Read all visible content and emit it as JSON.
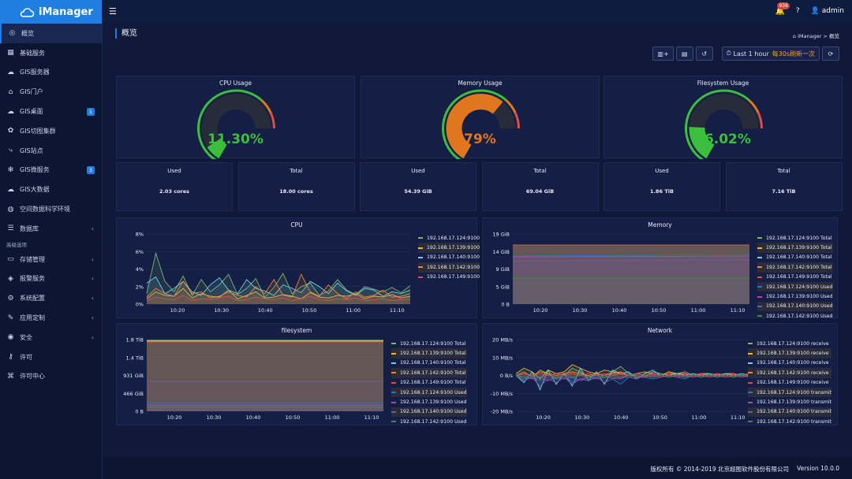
{
  "app": {
    "title": "iManager"
  },
  "sidebar": {
    "items": [
      {
        "label": "概览",
        "icon": "dashboard-icon",
        "active": true
      },
      {
        "label": "基础服务",
        "icon": "grid-icon"
      },
      {
        "label": "GIS服务器",
        "icon": "cloud-icon"
      },
      {
        "label": "GIS门户",
        "icon": "home-icon"
      },
      {
        "label": "GIS桌面",
        "icon": "cloud-icon",
        "badge": "1"
      },
      {
        "label": "GIS切图集群",
        "icon": "cluster-icon"
      },
      {
        "label": "GIS站点",
        "icon": "share-icon"
      },
      {
        "label": "GIS微服务",
        "icon": "asterisk-icon",
        "badge": "3"
      },
      {
        "label": "GIS大数据",
        "icon": "cloud-icon"
      },
      {
        "label": "空间数据科学环境",
        "icon": "globe-icon"
      },
      {
        "label": "数据库",
        "icon": "database-icon",
        "chevron": true
      }
    ],
    "group_label": "高级选项",
    "advanced": [
      {
        "label": "存储管理",
        "icon": "storage-icon",
        "chevron": true
      },
      {
        "label": "报警服务",
        "icon": "megaphone-icon",
        "chevron": true
      },
      {
        "label": "系统配置",
        "icon": "gear-icon",
        "chevron": true
      },
      {
        "label": "应用定制",
        "icon": "wrench-icon",
        "chevron": true
      },
      {
        "label": "安全",
        "icon": "shield-icon",
        "chevron": true
      },
      {
        "label": "许可",
        "icon": "key-icon"
      },
      {
        "label": "许可中心",
        "icon": "license-center-icon"
      }
    ]
  },
  "topbar": {
    "notifications": "938",
    "user": "admin"
  },
  "page": {
    "title": "概览",
    "breadcrumb_home": "iManager",
    "breadcrumb_current": "概览"
  },
  "toolbar": {
    "time_range": "Last 1 hour",
    "refresh": "每30s刷新一次"
  },
  "gauges": [
    {
      "title": "CPU Usage",
      "value": "11.30%",
      "percent": 11.3,
      "color": "#3cbf3c"
    },
    {
      "title": "Memory Usage",
      "value": "79%",
      "percent": 79,
      "color": "#e0761e"
    },
    {
      "title": "Filesystem Usage",
      "value": "26.02%",
      "percent": 26.02,
      "color": "#3cbf3c"
    }
  ],
  "stats": [
    {
      "label": "Used",
      "value": "2.03 cores"
    },
    {
      "label": "Total",
      "value": "18.00 cores"
    },
    {
      "label": "Used",
      "value": "54.39 GiB"
    },
    {
      "label": "Total",
      "value": "69.04 GiB"
    },
    {
      "label": "Used",
      "value": "1.86 TiB"
    },
    {
      "label": "Total",
      "value": "7.16 TiB"
    }
  ],
  "chart_data": [
    {
      "type": "line",
      "title": "CPU",
      "y_ticks": [
        "8%",
        "6%",
        "4%",
        "2%",
        "0%"
      ],
      "x_ticks": [
        "10:20",
        "10:30",
        "10:40",
        "10:50",
        "11:00",
        "11:10"
      ],
      "ylim": [
        0,
        8
      ],
      "series": [
        {
          "name": "192.168.17.124:9100",
          "color": "#7eb26d",
          "values": [
            1.2,
            5.8,
            2.6,
            1.4,
            3.2,
            1.0,
            2.8,
            1.4,
            2.2,
            3.4,
            1.1,
            1.8,
            2.9,
            0.8,
            1.9,
            3.5,
            1.2,
            2.0,
            2.4,
            1.0,
            1.5,
            2.8,
            1.6,
            1.1,
            2.0,
            1.7,
            1.4,
            1.9,
            1.3,
            2.1
          ]
        },
        {
          "name": "192.168.17.139:9100",
          "color": "#eab839",
          "values": [
            0.6,
            1.4,
            1.0,
            0.9,
            1.8,
            0.7,
            1.2,
            0.9,
            0.8,
            1.6,
            0.6,
            1.0,
            1.4,
            0.7,
            0.8,
            1.1,
            0.9,
            0.6,
            1.3,
            0.8,
            0.7,
            1.0,
            0.9,
            1.2,
            0.6,
            0.9,
            0.8,
            1.1,
            0.7,
            0.9
          ]
        },
        {
          "name": "192.168.17.140:9100",
          "color": "#6ed0e0",
          "values": [
            2.4,
            3.1,
            1.2,
            1.8,
            2.6,
            1.4,
            1.0,
            2.2,
            3.0,
            1.6,
            1.2,
            2.8,
            1.8,
            1.5,
            1.0,
            2.2,
            1.8,
            1.3,
            2.6,
            2.0,
            1.2,
            2.4,
            1.5,
            1.0,
            1.8,
            1.6,
            0.9,
            1.4,
            1.2,
            1.6
          ]
        },
        {
          "name": "192.168.17.142:9100",
          "color": "#ef843c",
          "values": [
            0.8,
            1.8,
            1.2,
            0.9,
            2.6,
            1.2,
            1.4,
            0.7,
            0.9,
            1.4,
            1.0,
            0.8,
            2.0,
            1.2,
            2.8,
            1.0,
            0.8,
            3.4,
            1.4,
            0.9,
            2.2,
            1.2,
            0.6,
            1.4,
            0.8,
            1.0,
            1.6,
            0.8,
            0.9,
            1.2
          ]
        },
        {
          "name": "192.168.17.149:9100",
          "color": "#e24d42",
          "values": [
            0.4,
            0.8,
            0.6,
            0.5,
            1.0,
            0.4,
            0.6,
            0.5,
            0.7,
            0.9,
            0.4,
            0.5,
            0.8,
            0.6,
            0.5,
            0.7,
            0.4,
            0.6,
            0.9,
            0.5,
            0.4,
            0.6,
            0.5,
            0.7,
            0.4,
            0.5,
            0.6,
            0.4,
            0.5,
            0.6
          ]
        }
      ]
    },
    {
      "type": "line",
      "title": "Memory",
      "y_ticks": [
        "19 GiB",
        "14 GiB",
        "9 GiB",
        "5 GiB",
        "0 B"
      ],
      "x_ticks": [
        "10:20",
        "10:30",
        "10:40",
        "10:50",
        "11:00",
        "11:10"
      ],
      "ylim": [
        0,
        19
      ],
      "series": [
        {
          "name": "192.168.17.124:9100 Total",
          "color": "#7eb26d",
          "values": [
            16,
            16
          ]
        },
        {
          "name": "192.168.17.139:9100 Total",
          "color": "#eab839",
          "values": [
            16,
            16
          ]
        },
        {
          "name": "192.168.17.140:9100 Total",
          "color": "#6ed0e0",
          "values": [
            16,
            16
          ]
        },
        {
          "name": "192.168.17.142:9100 Total",
          "color": "#ef843c",
          "values": [
            16,
            16
          ]
        },
        {
          "name": "192.168.17.149:9100 Total",
          "color": "#e24d42",
          "values": [
            16,
            16
          ]
        },
        {
          "name": "192.168.17.124:9100 Used",
          "color": "#1f78c1",
          "values": [
            13,
            13.4
          ]
        },
        {
          "name": "192.168.17.139:9100 Used",
          "color": "#ba43a9",
          "values": [
            12.8,
            13
          ]
        },
        {
          "name": "192.168.17.140:9100 Used",
          "color": "#705da0",
          "values": [
            11.6,
            12
          ]
        },
        {
          "name": "192.168.17.142:9100 Used",
          "color": "#508642",
          "values": [
            7,
            7
          ]
        }
      ]
    },
    {
      "type": "line",
      "title": "filesystem",
      "y_ticks": [
        "1.8 TiB",
        "1.4 TiB",
        "931 GiB",
        "466 GiB",
        "0 B"
      ],
      "x_ticks": [
        "10:20",
        "10:30",
        "10:40",
        "10:50",
        "11:00",
        "11:10"
      ],
      "ylim": [
        0,
        1.8
      ],
      "series": [
        {
          "name": "192.168.17.124:9100 Total",
          "color": "#7eb26d",
          "values": [
            1.78,
            1.78
          ]
        },
        {
          "name": "192.168.17.139:9100 Total",
          "color": "#eab839",
          "values": [
            1.77,
            1.77
          ]
        },
        {
          "name": "192.168.17.140:9100 Total",
          "color": "#6ed0e0",
          "values": [
            1.76,
            1.76
          ]
        },
        {
          "name": "192.168.17.142:9100 Total",
          "color": "#ef843c",
          "values": [
            1.75,
            1.75
          ]
        },
        {
          "name": "192.168.17.149:9100 Total",
          "color": "#e24d42",
          "values": [
            1.74,
            1.74
          ]
        },
        {
          "name": "192.168.17.124:9100 Used",
          "color": "#1f78c1",
          "values": [
            0.2,
            0.2
          ]
        },
        {
          "name": "192.168.17.139:9100 Used",
          "color": "#ba43a9",
          "values": [
            0.15,
            0.15
          ]
        },
        {
          "name": "192.168.17.140:9100 Used",
          "color": "#705da0",
          "values": [
            0.75,
            0.75
          ]
        },
        {
          "name": "192.168.17.142:9100 Used",
          "color": "#508642",
          "values": [
            0.1,
            0.1
          ]
        }
      ]
    },
    {
      "type": "line",
      "title": "Network",
      "y_ticks": [
        "20 MB/s",
        "10 MB/s",
        "0 B/s",
        "-10 MB/s",
        "-20 MB/s"
      ],
      "x_ticks": [
        "10:20",
        "10:30",
        "10:40",
        "10:50",
        "11:00",
        "11:10"
      ],
      "ylim": [
        -20,
        20
      ],
      "series": [
        {
          "name": "192.168.17.124:9100 receive",
          "color": "#7eb26d",
          "values": [
            0,
            2,
            -1,
            3,
            1,
            -2,
            0,
            4,
            2,
            -1,
            1,
            0,
            2,
            5,
            1,
            0,
            -1,
            2,
            1,
            0,
            1,
            2,
            0,
            1,
            0,
            1,
            0,
            1,
            0,
            1
          ]
        },
        {
          "name": "192.168.17.139:9100 receive",
          "color": "#eab839",
          "values": [
            1,
            4,
            2,
            -2,
            3,
            1,
            2,
            6,
            4,
            2,
            1,
            3,
            2,
            1,
            0,
            1,
            2,
            1,
            0,
            2,
            1,
            1,
            0,
            1,
            1,
            0,
            1,
            1,
            0,
            1
          ]
        },
        {
          "name": "192.168.17.140:9100 receive",
          "color": "#6ed0e0",
          "values": [
            0,
            -4,
            2,
            -8,
            3,
            -5,
            1,
            -6,
            4,
            -3,
            2,
            -5,
            3,
            1,
            2,
            -2,
            1,
            3,
            0,
            1,
            1,
            0,
            1,
            0,
            1,
            0,
            1,
            0,
            1,
            0
          ]
        },
        {
          "name": "192.168.17.142:9100 receive",
          "color": "#ef843c",
          "values": [
            0,
            1,
            0,
            2,
            1,
            0,
            1,
            2,
            1,
            0,
            1,
            0,
            1,
            2,
            0,
            1,
            0,
            1,
            0,
            1,
            0,
            1,
            0,
            1,
            0,
            1,
            0,
            1,
            0,
            1
          ]
        },
        {
          "name": "192.168.17.149:9100 receive",
          "color": "#e24d42",
          "values": [
            0,
            1,
            0,
            1,
            0,
            1,
            0,
            1,
            0,
            1,
            0,
            1,
            0,
            1,
            0,
            1,
            0,
            1,
            0,
            1,
            0,
            1,
            0,
            1,
            0,
            1,
            0,
            1,
            0,
            1
          ]
        },
        {
          "name": "192.168.17.124:9100 transmit",
          "color": "#1f78c1",
          "values": [
            0,
            -2,
            -1,
            -3,
            -1,
            -2,
            0,
            -4,
            -2,
            -1,
            -1,
            0,
            -2,
            -5,
            -1,
            0,
            -1,
            -2,
            -1,
            0,
            -1,
            -2,
            0,
            -1,
            0,
            -1,
            0,
            -1,
            0,
            -1
          ]
        },
        {
          "name": "192.168.17.139:9100 transmit",
          "color": "#ba43a9",
          "values": [
            0,
            -1,
            -2,
            -1,
            -3,
            -1,
            -2,
            -1,
            -3,
            -1,
            -2,
            -1,
            -1,
            -2,
            0,
            -1,
            -1,
            0,
            -1,
            0,
            -1,
            0,
            -1,
            0,
            -1,
            0,
            -1,
            0,
            -1,
            0
          ]
        },
        {
          "name": "192.168.17.140:9100 transmit",
          "color": "#705da0",
          "values": [
            0,
            -3,
            -1,
            -6,
            -2,
            -4,
            -1,
            -5,
            -2,
            -3,
            -1,
            -4,
            -2,
            -1,
            -1,
            -2,
            0,
            -1,
            0,
            -1,
            0,
            -1,
            0,
            -1,
            0,
            -1,
            0,
            -1,
            0,
            -1
          ]
        },
        {
          "name": "192.168.17.142:9100 transmit",
          "color": "#508642",
          "values": [
            0,
            -1,
            0,
            -1,
            0,
            -1,
            0,
            -1,
            0,
            -1,
            0,
            -1,
            0,
            -1,
            0,
            -1,
            0,
            -1,
            0,
            -1,
            0,
            -1,
            0,
            -1,
            0,
            -1,
            0,
            -1,
            0,
            -1
          ]
        }
      ]
    }
  ],
  "footer": {
    "copyright": "版权所有 © 2014-2019 北京超图软件股份有限公司",
    "version": "Version 10.0.0"
  }
}
